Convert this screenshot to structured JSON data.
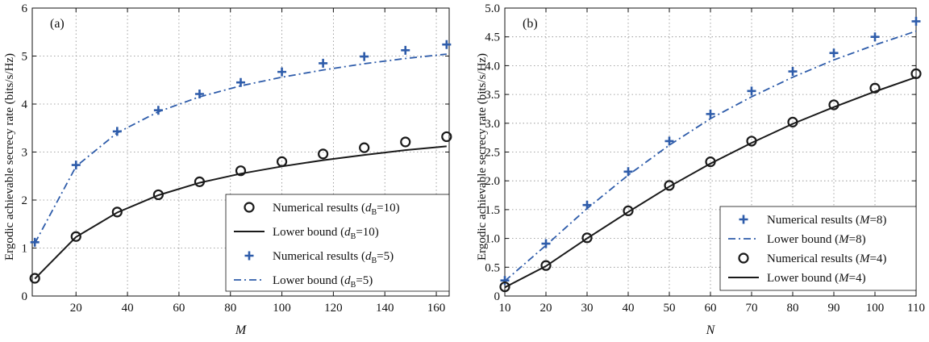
{
  "chart_data": [
    {
      "type": "line",
      "panel_label": "(a)",
      "xlabel": "M",
      "ylabel": "Ergodic achievable secrecy rate (bits/s/Hz)",
      "xlim": [
        3,
        165
      ],
      "ylim": [
        0,
        6
      ],
      "xticks": [
        20,
        40,
        60,
        80,
        100,
        120,
        140,
        160
      ],
      "xtick_labels": [
        "20",
        "40",
        "60",
        "80",
        "100",
        "120",
        "140",
        "160"
      ],
      "yticks": [
        0,
        1,
        2,
        3,
        4,
        5,
        6
      ],
      "ytick_labels": [
        "0",
        "1",
        "2",
        "3",
        "4",
        "5",
        "6"
      ],
      "grid": true,
      "legend_position": "lower-right",
      "series": [
        {
          "legend": {
            "pre": "Numerical results (",
            "sym": "d",
            "sub": "B",
            "post": "=10)"
          },
          "marker": "circle",
          "line": "none",
          "color": "#1a1a1a",
          "x": [
            4,
            20,
            36,
            52,
            68,
            84,
            100,
            116,
            132,
            148,
            164
          ],
          "y": [
            0.37,
            1.24,
            1.75,
            2.11,
            2.38,
            2.61,
            2.8,
            2.96,
            3.09,
            3.21,
            3.32
          ]
        },
        {
          "legend": {
            "pre": "Lower bound (",
            "sym": "d",
            "sub": "B",
            "post": "=10)"
          },
          "marker": "none",
          "line": "solid",
          "color": "#1a1a1a",
          "x": [
            4,
            20,
            36,
            52,
            68,
            84,
            100,
            116,
            132,
            148,
            164
          ],
          "y": [
            0.36,
            1.23,
            1.74,
            2.1,
            2.36,
            2.55,
            2.7,
            2.83,
            2.94,
            3.04,
            3.12
          ]
        },
        {
          "legend": {
            "pre": "Numerical results (",
            "sym": "d",
            "sub": "B",
            "post": "=5)"
          },
          "marker": "plus",
          "line": "none",
          "color": "#2e5caa",
          "x": [
            4,
            20,
            36,
            52,
            68,
            84,
            100,
            116,
            132,
            148,
            164
          ],
          "y": [
            1.12,
            2.73,
            3.43,
            3.87,
            4.21,
            4.45,
            4.67,
            4.85,
            4.99,
            5.12,
            5.24
          ]
        },
        {
          "legend": {
            "pre": "Lower bound (",
            "sym": "d",
            "sub": "B",
            "post": "=5)"
          },
          "marker": "none",
          "line": "dashdot",
          "color": "#2e5caa",
          "x": [
            4,
            20,
            36,
            52,
            68,
            84,
            100,
            116,
            132,
            148,
            164
          ],
          "y": [
            1.1,
            2.7,
            3.4,
            3.84,
            4.15,
            4.38,
            4.56,
            4.71,
            4.84,
            4.95,
            5.04
          ]
        }
      ]
    },
    {
      "type": "line",
      "panel_label": "(b)",
      "xlabel": "N",
      "ylabel": "Ergodic achievable secrecy rate (bits/s/Hz)",
      "xlim": [
        10,
        110
      ],
      "ylim": [
        0,
        5
      ],
      "xticks": [
        10,
        20,
        30,
        40,
        50,
        60,
        70,
        80,
        90,
        100,
        110
      ],
      "xtick_labels": [
        "10",
        "20",
        "30",
        "40",
        "50",
        "60",
        "70",
        "80",
        "90",
        "100",
        "110"
      ],
      "yticks": [
        0,
        0.5,
        1,
        1.5,
        2,
        2.5,
        3,
        3.5,
        4,
        4.5,
        5
      ],
      "ytick_labels": [
        "0",
        "0.5",
        "1.0",
        "1.5",
        "2.0",
        "2.5",
        "3.0",
        "3.5",
        "4.0",
        "4.5",
        "5.0"
      ],
      "grid": true,
      "legend_position": "lower-right",
      "series": [
        {
          "legend": {
            "pre": "Numerical results (",
            "sym": "M",
            "sub": "",
            "post": "=8)"
          },
          "marker": "plus",
          "line": "none",
          "color": "#2e5caa",
          "x": [
            10,
            20,
            30,
            40,
            50,
            60,
            70,
            80,
            90,
            100,
            110
          ],
          "y": [
            0.27,
            0.91,
            1.58,
            2.16,
            2.69,
            3.16,
            3.56,
            3.9,
            4.22,
            4.5,
            4.77
          ]
        },
        {
          "legend": {
            "pre": "Lower bound (",
            "sym": "M",
            "sub": "",
            "post": "=8)"
          },
          "marker": "none",
          "line": "dashdot",
          "color": "#2e5caa",
          "x": [
            10,
            20,
            30,
            40,
            50,
            60,
            70,
            80,
            90,
            100,
            110
          ],
          "y": [
            0.26,
            0.88,
            1.52,
            2.1,
            2.62,
            3.08,
            3.46,
            3.8,
            4.1,
            4.36,
            4.6
          ]
        },
        {
          "legend": {
            "pre": "Numerical results (",
            "sym": "M",
            "sub": "",
            "post": "=4)"
          },
          "marker": "circle",
          "line": "none",
          "color": "#1a1a1a",
          "x": [
            10,
            20,
            30,
            40,
            50,
            60,
            70,
            80,
            90,
            100,
            110
          ],
          "y": [
            0.16,
            0.53,
            1.01,
            1.48,
            1.92,
            2.33,
            2.69,
            3.02,
            3.32,
            3.61,
            3.86
          ]
        },
        {
          "legend": {
            "pre": "Lower bound (",
            "sym": "M",
            "sub": "",
            "post": "=4)"
          },
          "marker": "none",
          "line": "solid",
          "color": "#1a1a1a",
          "x": [
            10,
            20,
            30,
            40,
            50,
            60,
            70,
            80,
            90,
            100,
            110
          ],
          "y": [
            0.15,
            0.52,
            1.0,
            1.46,
            1.9,
            2.3,
            2.66,
            2.99,
            3.28,
            3.55,
            3.8
          ]
        }
      ]
    }
  ]
}
